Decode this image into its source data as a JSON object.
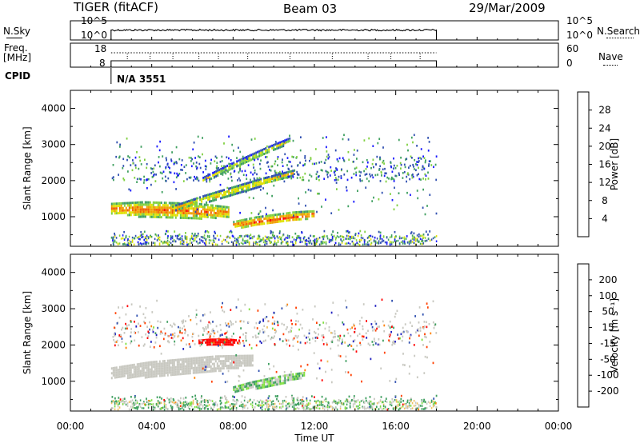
{
  "header": {
    "radar": "TIGER (fitACF)",
    "beam": "Beam 03",
    "date": "29/Mar/2009"
  },
  "summary": {
    "nsky_label": "N.Sky",
    "nsky_ticks": [
      "10^5",
      "10^0"
    ],
    "nsearch_label": "N.Search",
    "nsearch_ticks": [
      "10^5",
      "10^0"
    ],
    "freq_label": [
      "Freq.",
      "[MHz]"
    ],
    "freq_ticks": [
      "18",
      "8"
    ],
    "nave_label": "Nave",
    "nave_ticks": [
      "60",
      "0"
    ],
    "cpid_label": "CPID",
    "cpid_value": "N/A 3551"
  },
  "colors": {
    "power": [
      "#1a1aff",
      "#3050b0",
      "#40a060",
      "#80d040",
      "#e0e000",
      "#f0a000",
      "#f06000",
      "#ff0000"
    ],
    "velocity": [
      "#ff0000",
      "#ff4000",
      "#ff8000",
      "#f0c060",
      "#c8c8c0",
      "#80e040",
      "#40a060",
      "#3050b0",
      "#2020c0"
    ],
    "ground_scatter": "#c8c8c0"
  },
  "chart_data": [
    {
      "type": "heatmap",
      "name": "power",
      "xlabel": "",
      "ylabel": "Slant Range [km]",
      "x_range_hours": [
        0,
        24
      ],
      "ylim": [
        180,
        4500
      ],
      "yticks": [
        "1000",
        "2000",
        "3000",
        "4000"
      ],
      "colorbar": {
        "label": "Power [dB]",
        "range": [
          0,
          32
        ],
        "ticks": [
          "4",
          "8",
          "12",
          "16",
          "20",
          "24",
          "28"
        ]
      },
      "data_window_hours": [
        2.0,
        18.0
      ],
      "features": [
        {
          "desc": "main band",
          "t_start": 2.0,
          "t_end": 7.8,
          "range_start": 1250,
          "range_end": 1150,
          "width_km": 420,
          "value": 26
        },
        {
          "desc": "rising band",
          "t_start": 5.0,
          "t_end": 11.0,
          "range_start": 1250,
          "range_end": 2250,
          "width_km": 200,
          "value": 22
        },
        {
          "desc": "upper band",
          "t_start": 6.5,
          "t_end": 10.8,
          "range_start": 2050,
          "range_end": 3150,
          "width_km": 180,
          "value": 19
        },
        {
          "desc": "lower blob",
          "t_start": 8.0,
          "t_end": 12.0,
          "range_start": 800,
          "range_end": 1100,
          "width_km": 260,
          "value": 27
        }
      ]
    },
    {
      "type": "heatmap",
      "name": "velocity",
      "xlabel": "Time UT",
      "ylabel": "Slant Range [km]",
      "x_range_hours": [
        0,
        24
      ],
      "xticks": [
        "00:00",
        "04:00",
        "08:00",
        "12:00",
        "16:00",
        "20:00",
        "00:00"
      ],
      "ylim": [
        180,
        4500
      ],
      "yticks": [
        "1000",
        "2000",
        "3000",
        "4000"
      ],
      "colorbar": {
        "label": "Velocity [m s⁻¹]",
        "range": [
          -250,
          250
        ],
        "ticks": [
          "200",
          "100",
          "50",
          "15",
          "-15",
          "-50",
          "-100",
          "-200"
        ]
      },
      "data_window_hours": [
        2.0,
        18.0
      ],
      "features": [
        {
          "desc": "ground scatter band",
          "t_start": 2.0,
          "t_end": 9.0,
          "range_start": 1250,
          "range_end": 1600,
          "width_km": 420,
          "value": 0
        },
        {
          "desc": "red band",
          "t_start": 6.3,
          "t_end": 8.3,
          "range_start": 2100,
          "range_end": 2100,
          "width_km": 160,
          "value": -220
        },
        {
          "desc": "ionospheric scatter",
          "t_start": 8.0,
          "t_end": 11.5,
          "range_start": 800,
          "range_end": 1200,
          "width_km": 200,
          "value": 30
        }
      ]
    }
  ]
}
